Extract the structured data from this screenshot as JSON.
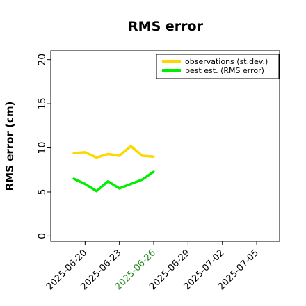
{
  "chart_data": {
    "type": "line",
    "title": "RMS error",
    "xlabel": "",
    "ylabel": "RMS error (cm)",
    "x_tick_labels": [
      "2025-06-20",
      "2025-06-23",
      "2025-06-26",
      "2025-06-29",
      "2025-07-02",
      "2025-07-05"
    ],
    "x_tick_colors": [
      "#000000",
      "#000000",
      "#228B22",
      "#000000",
      "#000000",
      "#000000"
    ],
    "y_ticks": [
      0,
      5,
      10,
      15,
      20
    ],
    "ylim": [
      -0.6,
      21
    ],
    "xlim": [
      "2025-06-17",
      "2025-07-07"
    ],
    "grid": false,
    "legend_position": "top-right",
    "series": [
      {
        "name": "observations (st.dev.)",
        "color": "#FFD700",
        "x": [
          "2025-06-19",
          "2025-06-20",
          "2025-06-21",
          "2025-06-22",
          "2025-06-23",
          "2025-06-24",
          "2025-06-25",
          "2025-06-26"
        ],
        "values": [
          9.4,
          9.5,
          8.9,
          9.3,
          9.1,
          10.2,
          9.1,
          9.0
        ]
      },
      {
        "name": "best est. (RMS error)",
        "color": "#00EE00",
        "x": [
          "2025-06-19",
          "2025-06-20",
          "2025-06-21",
          "2025-06-22",
          "2025-06-23",
          "2025-06-24",
          "2025-06-25",
          "2025-06-26"
        ],
        "values": [
          6.5,
          5.9,
          5.1,
          6.2,
          5.4,
          5.9,
          6.4,
          7.3
        ]
      }
    ]
  }
}
